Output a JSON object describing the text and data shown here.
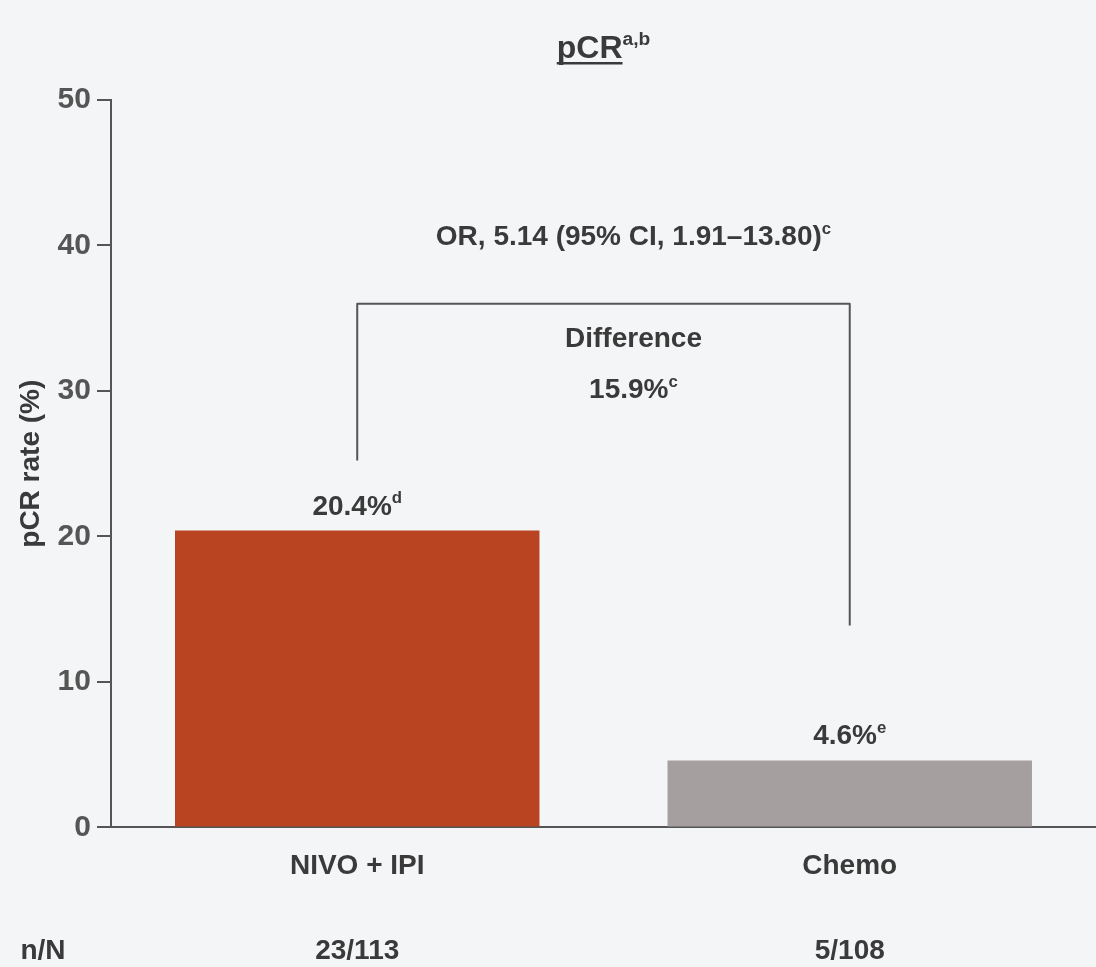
{
  "chart_data": {
    "type": "bar",
    "title": "pCR$^{a,b}$",
    "ylabel": "pCR rate (%)",
    "categories": [
      "NIVO + IPI",
      "Chemo"
    ],
    "values": [
      20.4,
      4.6
    ],
    "colors": [
      "#b84421",
      "#a59f9f"
    ],
    "value_labels": [
      "20.4%$^{d}$",
      "4.6%$^{e}$"
    ],
    "ylim": [
      0,
      50
    ],
    "yticks": [
      0,
      10,
      20,
      30,
      40,
      50
    ],
    "grid": false,
    "legend": false,
    "annotations": [
      "OR, 5.14 (95% CI, 1.91–13.80)$^{c}$",
      "Difference",
      "15.9%$^{c}$",
      "n/N",
      "23/113",
      "5/108"
    ]
  }
}
